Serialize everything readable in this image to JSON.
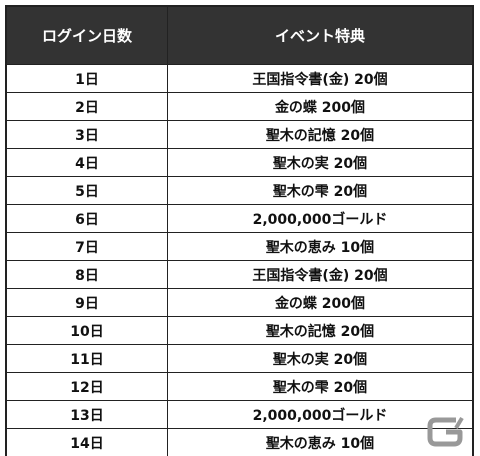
{
  "table": {
    "columns": [
      "ログイン日数",
      "イベント特典"
    ],
    "rows": [
      [
        "1日",
        "王国指令書(金) 20個"
      ],
      [
        "2日",
        "金の蝶 200個"
      ],
      [
        "3日",
        "聖木の記憶 20個"
      ],
      [
        "4日",
        "聖木の実 20個"
      ],
      [
        "5日",
        "聖木の雫 20個"
      ],
      [
        "6日",
        "2,000,000ゴールド"
      ],
      [
        "7日",
        "聖木の恵み 10個"
      ],
      [
        "8日",
        "王国指令書(金) 20個"
      ],
      [
        "9日",
        "金の蝶 200個"
      ],
      [
        "10日",
        "聖木の記憶 20個"
      ],
      [
        "11日",
        "聖木の実 20個"
      ],
      [
        "12日",
        "聖木の雫 20個"
      ],
      [
        "13日",
        "2,000,000ゴールド"
      ],
      [
        "14日",
        "聖木の恵み 10個"
      ]
    ]
  }
}
